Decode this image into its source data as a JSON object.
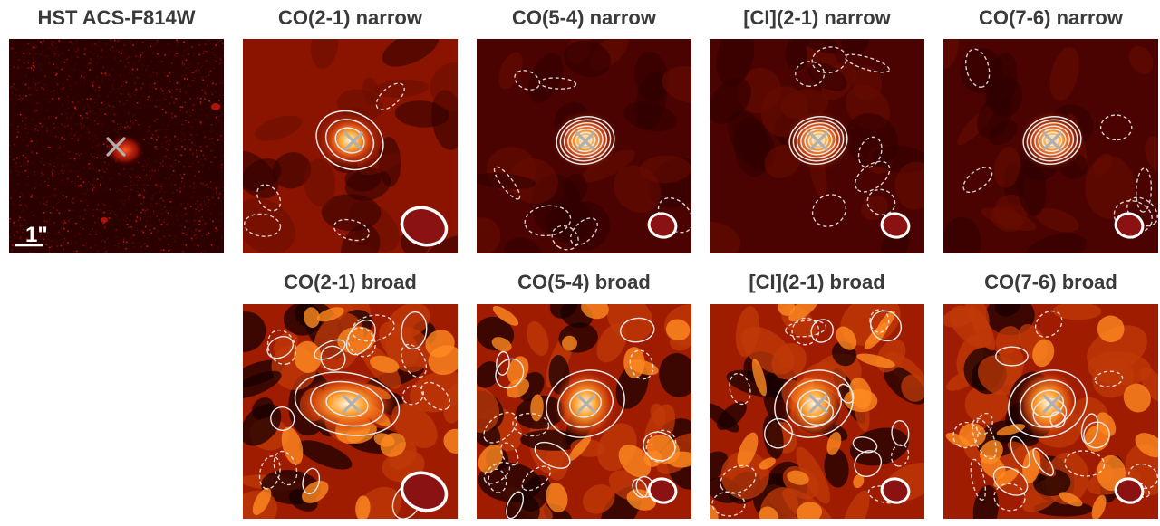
{
  "figure": {
    "panels": [
      {
        "id": "hst",
        "title": "HST ACS-F814W",
        "kind": "optical",
        "scalebar_label": "1\""
      },
      {
        "id": "co21n",
        "title": "CO(2-1) narrow",
        "kind": "narrow",
        "beam": "large"
      },
      {
        "id": "co54n",
        "title": "CO(5-4) narrow",
        "kind": "narrow",
        "beam": "small"
      },
      {
        "id": "ci21n",
        "title": "[CI](2-1) narrow",
        "kind": "narrow",
        "beam": "small"
      },
      {
        "id": "co76n",
        "title": "CO(7-6) narrow",
        "kind": "narrow",
        "beam": "small"
      },
      {
        "id": "co21b",
        "title": "CO(2-1) broad",
        "kind": "broad",
        "beam": "large"
      },
      {
        "id": "co54b",
        "title": "CO(5-4) broad",
        "kind": "broad",
        "beam": "small"
      },
      {
        "id": "ci21b",
        "title": "[CI](2-1) broad",
        "kind": "broad",
        "beam": "small"
      },
      {
        "id": "co76b",
        "title": "CO(7-6) broad",
        "kind": "broad",
        "beam": "small"
      }
    ],
    "colors": {
      "background_dark": "#3d0000",
      "background_mid": "#8a1a00",
      "emission_peak": "#fff6e0",
      "emission_mid": "#ff9a20",
      "contour": "#e8e8e8",
      "marker": "#b0b0b0",
      "beam_fill": "#8b1212",
      "beam_edge": "#ffffff"
    },
    "marker_symbol": "×"
  }
}
